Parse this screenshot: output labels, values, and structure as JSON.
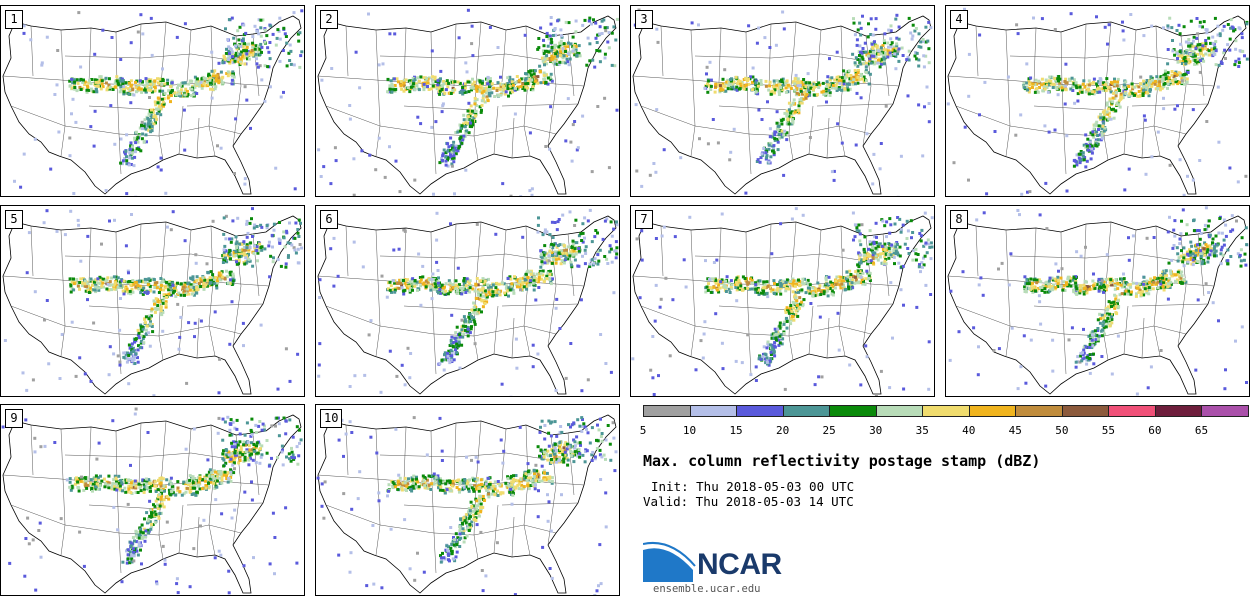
{
  "panels": [
    {
      "label": "1"
    },
    {
      "label": "2"
    },
    {
      "label": "3"
    },
    {
      "label": "4"
    },
    {
      "label": "5"
    },
    {
      "label": "6"
    },
    {
      "label": "7"
    },
    {
      "label": "8"
    },
    {
      "label": "9"
    },
    {
      "label": "10"
    }
  ],
  "colorbar": {
    "colors": [
      "#a0a0a0",
      "#b4bfe8",
      "#5a5adc",
      "#4c9696",
      "#0a8a0a",
      "#b8dcb8",
      "#f0dc6e",
      "#f0b41e",
      "#c08c3c",
      "#8c5a3c",
      "#f05078",
      "#6e1e3c",
      "#aa50aa"
    ],
    "ticks": [
      "5",
      "10",
      "15",
      "20",
      "25",
      "30",
      "35",
      "40",
      "45",
      "50",
      "55",
      "60",
      "65"
    ]
  },
  "title": "Max. column reflectivity postage stamp (dBZ)",
  "init": "Init: Thu 2018-05-03 00 UTC",
  "valid": "Valid: Thu 2018-05-03 14 UTC",
  "logo": {
    "text": "NCAR",
    "url": "ensemble.ucar.edu"
  }
}
